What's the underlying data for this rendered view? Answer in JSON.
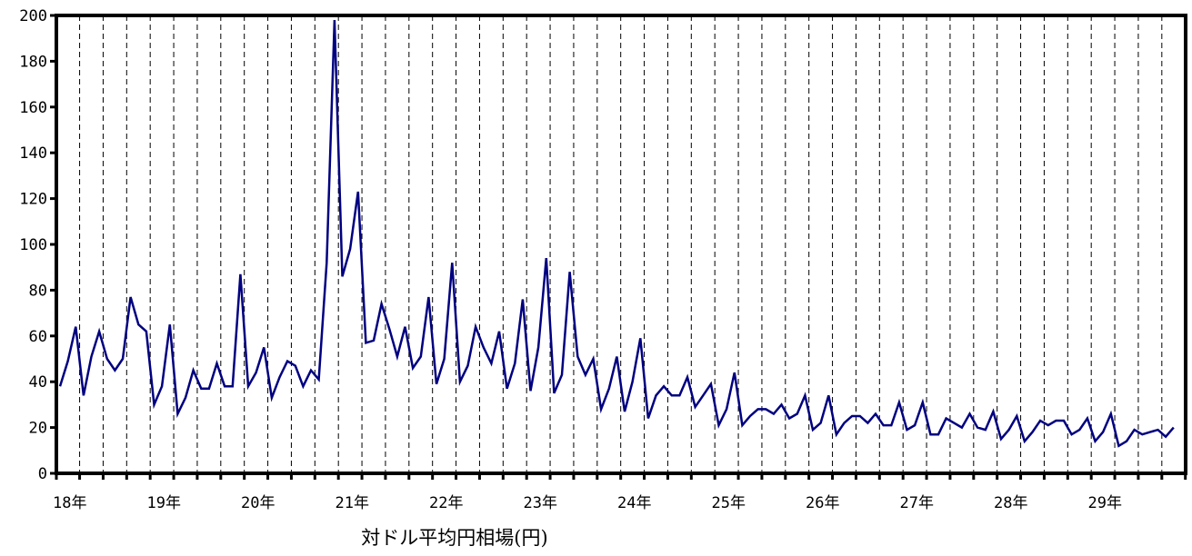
{
  "chart_data": {
    "type": "line",
    "caption": "対ドル平均円相場(円)",
    "ylim": [
      0,
      200
    ],
    "y_ticks": [
      "0",
      "20",
      "40",
      "60",
      "80",
      "100",
      "120",
      "140",
      "160",
      "180",
      "200"
    ],
    "x_tick_labels": [
      "18年",
      "19年",
      "20年",
      "21年",
      "22年",
      "23年",
      "24年",
      "25年",
      "26年",
      "27年",
      "28年",
      "29年"
    ],
    "grid": "vertical dashed lines at each quarter",
    "line_color": "#000080",
    "series": [
      {
        "values": [
          38,
          49,
          64,
          34,
          51,
          62,
          50,
          45,
          50,
          77,
          65,
          62,
          30,
          38,
          65,
          26,
          33,
          45,
          37,
          37,
          48,
          38,
          38,
          87,
          38,
          44,
          55,
          33,
          42,
          49,
          47,
          38,
          45,
          41,
          92,
          198,
          86,
          98,
          123,
          57,
          58,
          74,
          63,
          51,
          64,
          46,
          51,
          77,
          39,
          50,
          92,
          40,
          47,
          64,
          55,
          48,
          62,
          37,
          48,
          76,
          36,
          55,
          94,
          35,
          43,
          88,
          51,
          43,
          50,
          28,
          37,
          51,
          27,
          40,
          59,
          24,
          34,
          38,
          34,
          34,
          42,
          29,
          34,
          39,
          21,
          28,
          44,
          21,
          25,
          28,
          28,
          26,
          30,
          24,
          26,
          34,
          19,
          22,
          34,
          17,
          22,
          25,
          25,
          22,
          26,
          21,
          21,
          31,
          19,
          21,
          31,
          17,
          17,
          24,
          22,
          20,
          26,
          20,
          19,
          27,
          15,
          19,
          25,
          14,
          18,
          23,
          21,
          23,
          23,
          17,
          19,
          24,
          14,
          18,
          26,
          12,
          14,
          19,
          17,
          18,
          19,
          16,
          20
        ]
      }
    ]
  }
}
